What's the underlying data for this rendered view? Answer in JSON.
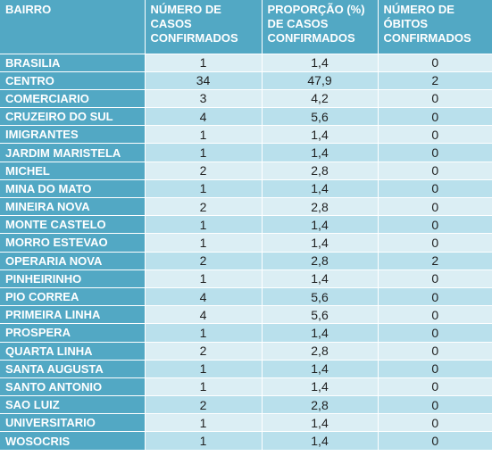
{
  "headers": {
    "bairro": "BAIRRO",
    "casos": "NÚMERO DE CASOS CONFIRMADOS",
    "proporcao": "PROPORÇÃO (%) DE CASOS CONFIRMADOS",
    "obitos": "NÚMERO DE ÓBITOS CONFIRMADOS"
  },
  "rows": [
    {
      "bairro": "BRASILIA",
      "casos": "1",
      "proporcao": "1,4",
      "obitos": "0"
    },
    {
      "bairro": "CENTRO",
      "casos": "34",
      "proporcao": "47,9",
      "obitos": "2"
    },
    {
      "bairro": "COMERCIARIO",
      "casos": "3",
      "proporcao": "4,2",
      "obitos": "0"
    },
    {
      "bairro": "CRUZEIRO DO SUL",
      "casos": "4",
      "proporcao": "5,6",
      "obitos": "0"
    },
    {
      "bairro": "IMIGRANTES",
      "casos": "1",
      "proporcao": "1,4",
      "obitos": "0"
    },
    {
      "bairro": "JARDIM MARISTELA",
      "casos": "1",
      "proporcao": "1,4",
      "obitos": "0"
    },
    {
      "bairro": "MICHEL",
      "casos": "2",
      "proporcao": "2,8",
      "obitos": "0"
    },
    {
      "bairro": "MINA DO MATO",
      "casos": "1",
      "proporcao": "1,4",
      "obitos": "0"
    },
    {
      "bairro": "MINEIRA NOVA",
      "casos": "2",
      "proporcao": "2,8",
      "obitos": "0"
    },
    {
      "bairro": "MONTE CASTELO",
      "casos": "1",
      "proporcao": "1,4",
      "obitos": "0"
    },
    {
      "bairro": "MORRO ESTEVAO",
      "casos": "1",
      "proporcao": "1,4",
      "obitos": "0"
    },
    {
      "bairro": "OPERARIA NOVA",
      "casos": "2",
      "proporcao": "2,8",
      "obitos": "2"
    },
    {
      "bairro": "PINHEIRINHO",
      "casos": "1",
      "proporcao": "1,4",
      "obitos": "0"
    },
    {
      "bairro": "PIO CORREA",
      "casos": "4",
      "proporcao": "5,6",
      "obitos": "0"
    },
    {
      "bairro": "PRIMEIRA LINHA",
      "casos": "4",
      "proporcao": "5,6",
      "obitos": "0"
    },
    {
      "bairro": "PROSPERA",
      "casos": "1",
      "proporcao": "1,4",
      "obitos": "0"
    },
    {
      "bairro": "QUARTA LINHA",
      "casos": "2",
      "proporcao": "2,8",
      "obitos": "0"
    },
    {
      "bairro": "SANTA AUGUSTA",
      "casos": "1",
      "proporcao": "1,4",
      "obitos": "0"
    },
    {
      "bairro": "SANTO ANTONIO",
      "casos": "1",
      "proporcao": "1,4",
      "obitos": "0"
    },
    {
      "bairro": "SAO LUIZ",
      "casos": "2",
      "proporcao": "2,8",
      "obitos": "0"
    },
    {
      "bairro": "UNIVERSITARIO",
      "casos": "1",
      "proporcao": "1,4",
      "obitos": "0"
    },
    {
      "bairro": "WOSOCRIS",
      "casos": "1",
      "proporcao": "1,4",
      "obitos": "0"
    }
  ]
}
